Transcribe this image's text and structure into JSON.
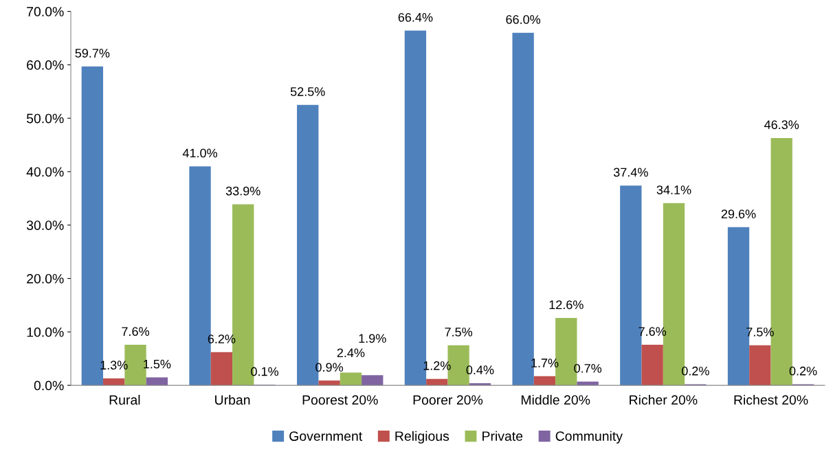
{
  "chart_data": {
    "type": "bar",
    "categories": [
      "Rural",
      "Urban",
      "Poorest 20%",
      "Poorer 20%",
      "Middle 20%",
      "Richer 20%",
      "Richest 20%"
    ],
    "series": [
      {
        "name": "Government",
        "color": "#4f81bd",
        "values": [
          59.7,
          41.0,
          52.5,
          66.4,
          66.0,
          37.4,
          29.6
        ],
        "value_labels": [
          "59.7%",
          "41.0%",
          "52.5%",
          "66.4%",
          "66.0%",
          "37.4%",
          "29.6%"
        ]
      },
      {
        "name": "Religious",
        "color": "#c0504d",
        "values": [
          1.3,
          6.2,
          0.9,
          1.2,
          1.7,
          7.6,
          7.5
        ],
        "value_labels": [
          "1.3%",
          "6.2%",
          "0.9%",
          "1.2%",
          "1.7%",
          "7.6%",
          "7.5%"
        ]
      },
      {
        "name": "Private",
        "color": "#9bbb59",
        "values": [
          7.6,
          33.9,
          2.4,
          7.5,
          12.6,
          34.1,
          46.3
        ],
        "value_labels": [
          "7.6%",
          "33.9%",
          "2.4%",
          "7.5%",
          "12.6%",
          "34.1%",
          "46.3%"
        ]
      },
      {
        "name": "Community",
        "color": "#8064a2",
        "values": [
          1.5,
          0.1,
          1.9,
          0.4,
          0.7,
          0.2,
          0.2
        ],
        "value_labels": [
          "1.5%",
          "0.1%",
          "1.9%",
          "0.4%",
          "0.7%",
          "0.2%",
          "0.2%"
        ]
      }
    ],
    "ylim": [
      0,
      70
    ],
    "yticks": [
      {
        "value": 0,
        "label": "0.0%"
      },
      {
        "value": 10,
        "label": "10.0%"
      },
      {
        "value": 20,
        "label": "20.0%"
      },
      {
        "value": 30,
        "label": "30.0%"
      },
      {
        "value": 40,
        "label": "40.0%"
      },
      {
        "value": 50,
        "label": "50.0%"
      },
      {
        "value": 60,
        "label": "60.0%"
      },
      {
        "value": 70,
        "label": "70.0%"
      }
    ],
    "grid": false,
    "legend": "bottom"
  }
}
